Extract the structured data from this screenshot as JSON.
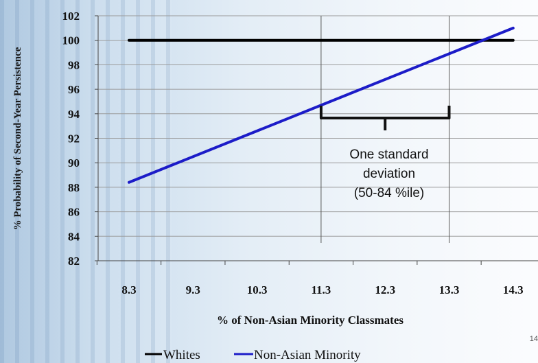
{
  "chart_data": {
    "type": "line",
    "ylabel": "% Probability of Second-Year Persistence",
    "xlabel": "% of Non-Asian Minority Classmates",
    "ylim": [
      82,
      102
    ],
    "yticks": [
      82,
      84,
      86,
      88,
      90,
      92,
      94,
      96,
      98,
      100,
      102
    ],
    "x_tick_labels": [
      "8.3",
      "9.3",
      "10.3",
      "11.3",
      "12.3",
      "13.3",
      "14.3"
    ],
    "grid": true,
    "legend_position": "bottom",
    "series": [
      {
        "name": "Whites",
        "color": "#000000",
        "points": [
          [
            8.3,
            100
          ],
          [
            14.3,
            100
          ]
        ]
      },
      {
        "name": "Non-Asian Minority",
        "color": "#1c1cc8",
        "points": [
          [
            8.3,
            88.4
          ],
          [
            14.3,
            101
          ]
        ]
      }
    ],
    "annotation": {
      "lines": [
        "One standard",
        "deviation",
        "(50-84 %ile)"
      ],
      "x_range": [
        11.3,
        13.3
      ]
    }
  },
  "page_number": "14"
}
